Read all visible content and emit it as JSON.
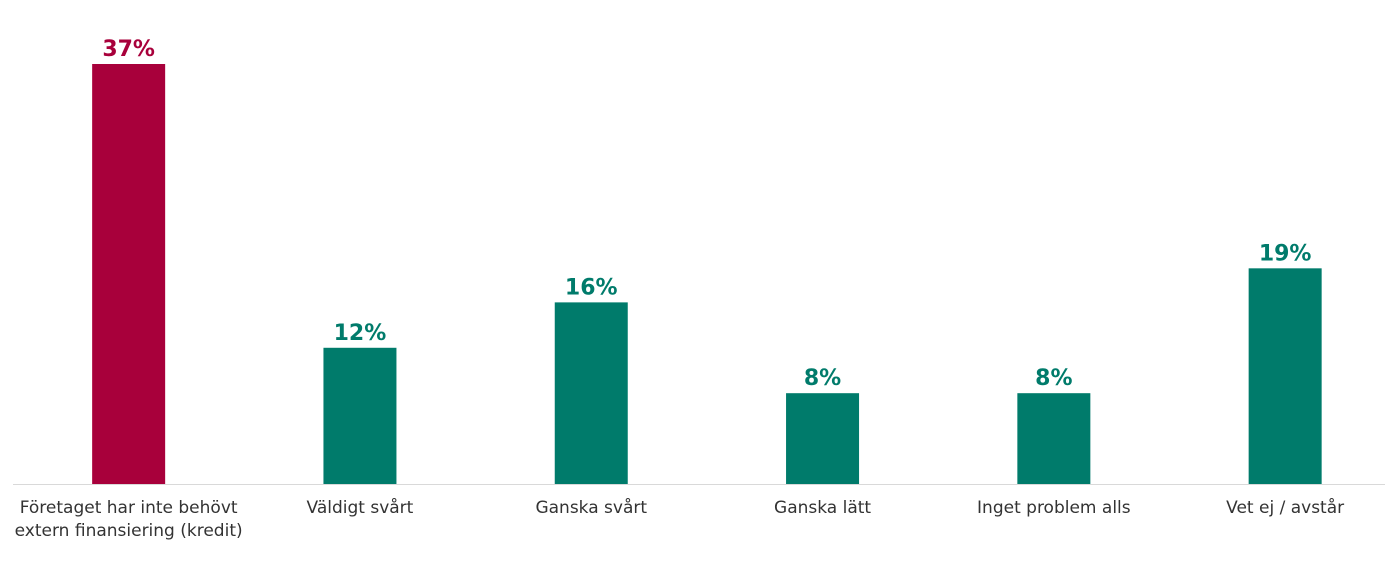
{
  "chart_data": {
    "type": "bar",
    "categories": [
      "Företaget har inte behövt extern finansiering (kredit)",
      "Väldigt svårt",
      "Ganska svårt",
      "Ganska lätt",
      "Inget problem alls",
      "Vet ej / avstår"
    ],
    "values": [
      37,
      12,
      16,
      8,
      8,
      19
    ],
    "value_labels": [
      "37%",
      "12%",
      "16%",
      "8%",
      "8%",
      "19%"
    ],
    "colors": [
      "#a8003b",
      "#007b6b",
      "#007b6b",
      "#007b6b",
      "#007b6b",
      "#007b6b"
    ]
  }
}
